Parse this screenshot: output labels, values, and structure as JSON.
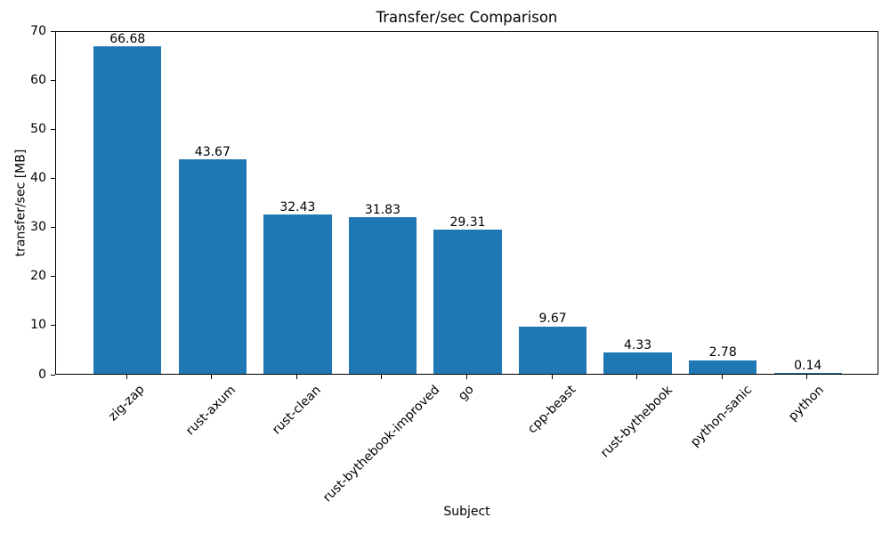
{
  "chart_data": {
    "type": "bar",
    "title": "Transfer/sec Comparison",
    "xlabel": "Subject",
    "ylabel": "transfer/sec [MB]",
    "categories": [
      "zig-zap",
      "rust-axum",
      "rust-clean",
      "rust-bythebook-improved",
      "go",
      "cpp-beast",
      "rust-bythebook",
      "python-sanic",
      "python"
    ],
    "values": [
      66.68,
      43.67,
      32.43,
      31.83,
      29.31,
      9.67,
      4.33,
      2.78,
      0.14
    ],
    "bar_labels": [
      "66.68",
      "43.67",
      "32.43",
      "31.83",
      "29.31",
      "9.67",
      "4.33",
      "2.78",
      "0.14"
    ],
    "yticks": [
      0,
      10,
      20,
      30,
      40,
      50,
      60,
      70
    ],
    "ylim": [
      0,
      70
    ],
    "x_tick_rotation_deg": 45,
    "grid": false,
    "legend": null,
    "bar_color": "#1f77b4",
    "axis_color": "#000000",
    "text_color": "#000000",
    "background_color": "#ffffff"
  }
}
